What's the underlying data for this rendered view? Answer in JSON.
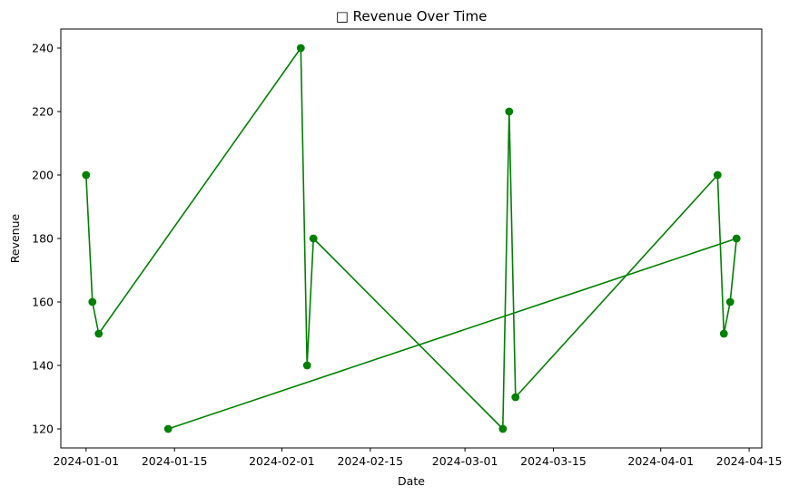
{
  "chart_data": {
    "type": "line",
    "title": "□ Revenue Over Time",
    "xlabel": "Date",
    "ylabel": "Revenue",
    "ylim": [
      114,
      246
    ],
    "xlim": [
      "2023-12-28",
      "2024-04-17"
    ],
    "grid": false,
    "color": "#008000",
    "y_ticks": [
      120,
      140,
      160,
      180,
      200,
      220,
      240
    ],
    "x_ticks": [
      "2024-01-01",
      "2024-01-15",
      "2024-02-01",
      "2024-02-15",
      "2024-03-01",
      "2024-03-15",
      "2024-04-01",
      "2024-04-15"
    ],
    "series": [
      {
        "points": [
          {
            "x": "2024-01-01",
            "y": 200
          },
          {
            "x": "2024-01-02",
            "y": 160
          },
          {
            "x": "2024-01-03",
            "y": 150
          },
          {
            "x": "2024-02-04",
            "y": 240
          },
          {
            "x": "2024-02-05",
            "y": 140
          },
          {
            "x": "2024-02-06",
            "y": 180
          },
          {
            "x": "2024-03-07",
            "y": 120
          },
          {
            "x": "2024-03-08",
            "y": 220
          },
          {
            "x": "2024-03-09",
            "y": 130
          },
          {
            "x": "2024-04-10",
            "y": 200
          },
          {
            "x": "2024-04-11",
            "y": 150
          },
          {
            "x": "2024-04-12",
            "y": 160
          },
          {
            "x": "2024-04-13",
            "y": 180
          },
          {
            "x": "2024-01-14",
            "y": 120
          }
        ]
      }
    ]
  }
}
